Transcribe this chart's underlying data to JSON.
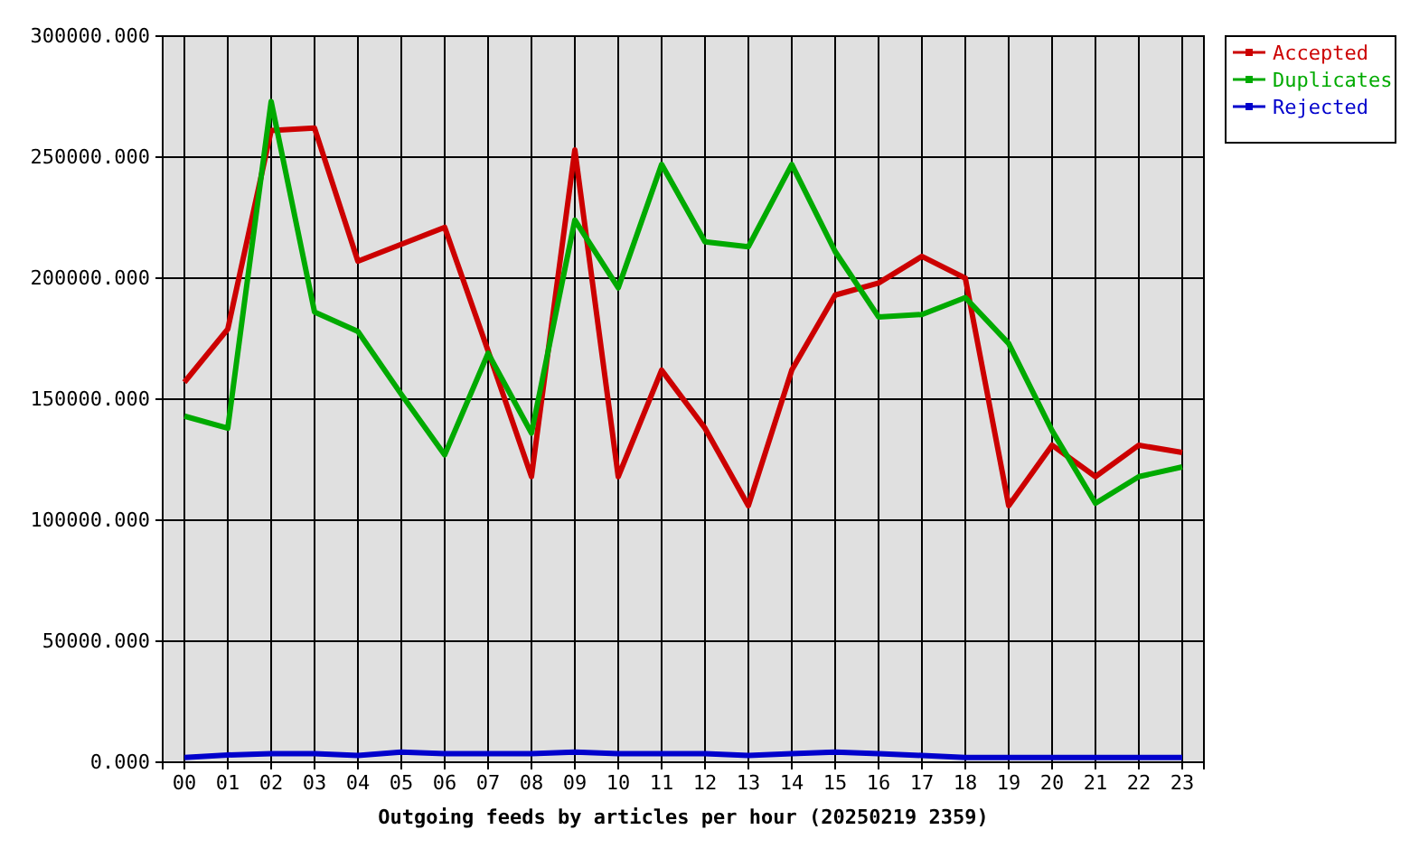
{
  "chart_data": {
    "type": "line",
    "xlabel": "Outgoing feeds by articles per hour (20250219 2359)",
    "categories": [
      "00",
      "01",
      "02",
      "03",
      "04",
      "05",
      "06",
      "07",
      "08",
      "09",
      "10",
      "11",
      "12",
      "13",
      "14",
      "15",
      "16",
      "17",
      "18",
      "19",
      "20",
      "21",
      "22",
      "23"
    ],
    "ylim": [
      0,
      300000
    ],
    "yticks": [
      {
        "value": 0,
        "label": "0.000"
      },
      {
        "value": 50000,
        "label": "50000.000"
      },
      {
        "value": 100000,
        "label": "100000.000"
      },
      {
        "value": 150000,
        "label": "150000.000"
      },
      {
        "value": 200000,
        "label": "200000.000"
      },
      {
        "value": 250000,
        "label": "250000.000"
      },
      {
        "value": 300000,
        "label": "300000.000"
      }
    ],
    "grid": true,
    "legend": "top right",
    "marker": "none",
    "line_style": "solid",
    "series": [
      {
        "name": "Accepted",
        "color": "#cc0000",
        "values": [
          157000,
          179000,
          261000,
          262000,
          207000,
          214000,
          221000,
          170000,
          118000,
          253000,
          118000,
          162000,
          138000,
          106000,
          162000,
          193000,
          198000,
          209000,
          200000,
          106000,
          131000,
          118000,
          131000,
          128000
        ]
      },
      {
        "name": "Duplicates",
        "color": "#00aa00",
        "values": [
          143000,
          138000,
          273000,
          186000,
          178000,
          152000,
          127000,
          169000,
          136000,
          224000,
          196000,
          247000,
          215000,
          213000,
          247000,
          211000,
          184000,
          185000,
          192000,
          173000,
          137000,
          107000,
          118000,
          122000
        ]
      },
      {
        "name": "Rejected",
        "color": "#0000cc",
        "values": [
          2000,
          3000,
          3500,
          3500,
          2800,
          4200,
          3500,
          3500,
          3500,
          4200,
          3500,
          3500,
          3500,
          2800,
          3500,
          4200,
          3500,
          2800,
          2000,
          2000,
          2000,
          2000,
          2000,
          2000
        ]
      }
    ]
  }
}
